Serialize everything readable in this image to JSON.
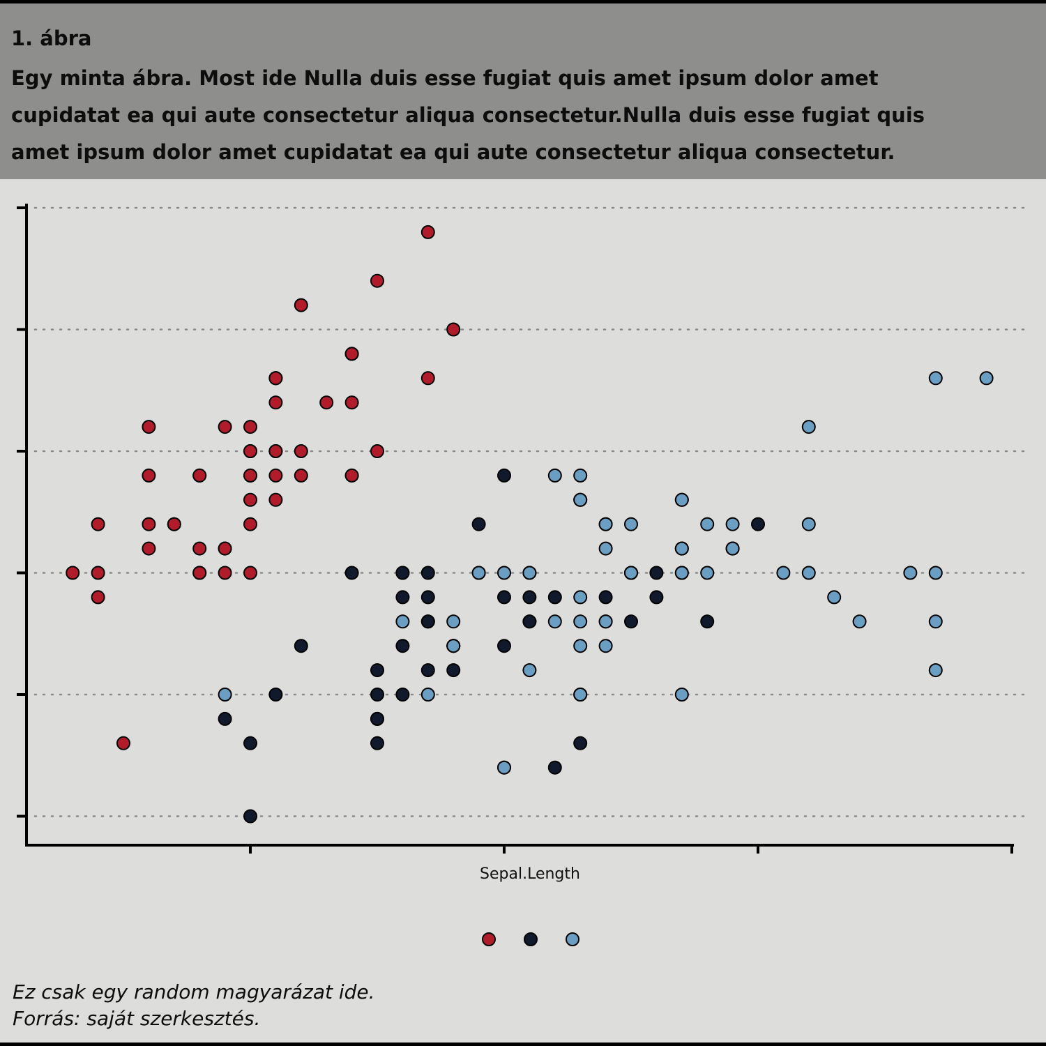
{
  "caption": {
    "number": "1. ábra",
    "text": "Egy minta ábra. Most ide Nulla duis esse fugiat quis amet ipsum dolor amet cupidatat ea qui aute consectetur aliqua consectetur.Nulla duis esse fugiat quis amet ipsum dolor amet cupidatat ea qui aute consectetur aliqua consectetur."
  },
  "footer": {
    "note": "Ez csak egy random magyarázat ide.",
    "source": "Forrás: saját szerkesztés."
  },
  "chart_data": {
    "type": "scatter",
    "title": "",
    "xlabel": "Sepal.Length",
    "ylabel": "",
    "xlim": [
      4.2,
      8.0
    ],
    "ylim": [
      1.9,
      4.5
    ],
    "x_ticks": [
      5,
      6,
      7,
      8
    ],
    "y_ticks": [
      2.0,
      2.5,
      3.0,
      3.5,
      4.0,
      4.5
    ],
    "tick_labels_shown": false,
    "grid": "horizontal dotted",
    "legend_position": "bottom",
    "legend_labels_shown": false,
    "series": [
      {
        "color": "#b01c2a",
        "points": [
          [
            5.1,
            3.5
          ],
          [
            4.9,
            3.0
          ],
          [
            4.7,
            3.2
          ],
          [
            4.6,
            3.1
          ],
          [
            5.0,
            3.6
          ],
          [
            5.4,
            3.9
          ],
          [
            4.6,
            3.4
          ],
          [
            5.0,
            3.4
          ],
          [
            4.4,
            2.9
          ],
          [
            4.9,
            3.1
          ],
          [
            5.4,
            3.7
          ],
          [
            4.8,
            3.4
          ],
          [
            4.8,
            3.0
          ],
          [
            4.3,
            3.0
          ],
          [
            5.8,
            4.0
          ],
          [
            5.7,
            4.4
          ],
          [
            5.4,
            3.9
          ],
          [
            5.1,
            3.5
          ],
          [
            5.7,
            3.8
          ],
          [
            5.1,
            3.8
          ],
          [
            5.4,
            3.4
          ],
          [
            5.1,
            3.7
          ],
          [
            4.6,
            3.6
          ],
          [
            5.1,
            3.3
          ],
          [
            4.8,
            3.4
          ],
          [
            5.0,
            3.0
          ],
          [
            5.0,
            3.4
          ],
          [
            5.2,
            3.5
          ],
          [
            5.2,
            3.4
          ],
          [
            4.7,
            3.2
          ],
          [
            4.8,
            3.1
          ],
          [
            5.4,
            3.4
          ],
          [
            5.2,
            4.1
          ],
          [
            5.5,
            4.2
          ],
          [
            4.9,
            3.1
          ],
          [
            5.0,
            3.2
          ],
          [
            5.5,
            3.5
          ],
          [
            4.9,
            3.6
          ],
          [
            4.4,
            3.0
          ],
          [
            5.1,
            3.4
          ],
          [
            5.0,
            3.5
          ],
          [
            4.5,
            2.3
          ],
          [
            4.4,
            3.2
          ],
          [
            5.0,
            3.5
          ],
          [
            5.1,
            3.8
          ],
          [
            4.8,
            3.0
          ],
          [
            5.1,
            3.8
          ],
          [
            4.6,
            3.2
          ],
          [
            5.3,
            3.7
          ],
          [
            5.0,
            3.3
          ]
        ]
      },
      {
        "color": "#111a2c",
        "points": [
          [
            7.0,
            3.2
          ],
          [
            6.4,
            3.2
          ],
          [
            6.9,
            3.1
          ],
          [
            5.5,
            2.3
          ],
          [
            6.5,
            2.8
          ],
          [
            5.7,
            2.8
          ],
          [
            6.3,
            3.3
          ],
          [
            4.9,
            2.4
          ],
          [
            6.6,
            2.9
          ],
          [
            5.2,
            2.7
          ],
          [
            5.0,
            2.0
          ],
          [
            5.9,
            3.0
          ],
          [
            6.0,
            2.2
          ],
          [
            6.1,
            2.9
          ],
          [
            5.6,
            2.9
          ],
          [
            6.7,
            3.1
          ],
          [
            5.6,
            3.0
          ],
          [
            5.8,
            2.7
          ],
          [
            6.2,
            2.2
          ],
          [
            5.6,
            2.5
          ],
          [
            5.9,
            3.2
          ],
          [
            6.1,
            2.8
          ],
          [
            6.3,
            2.5
          ],
          [
            6.1,
            2.8
          ],
          [
            6.4,
            2.9
          ],
          [
            6.6,
            3.0
          ],
          [
            6.8,
            2.8
          ],
          [
            6.7,
            3.0
          ],
          [
            6.0,
            2.9
          ],
          [
            5.7,
            2.6
          ],
          [
            5.5,
            2.4
          ],
          [
            5.5,
            2.4
          ],
          [
            5.8,
            2.7
          ],
          [
            6.0,
            2.7
          ],
          [
            5.4,
            3.0
          ],
          [
            6.0,
            3.4
          ],
          [
            6.7,
            3.1
          ],
          [
            6.3,
            2.3
          ],
          [
            5.6,
            3.0
          ],
          [
            5.5,
            2.5
          ],
          [
            5.5,
            2.6
          ],
          [
            6.1,
            3.0
          ],
          [
            5.8,
            2.6
          ],
          [
            5.0,
            2.3
          ],
          [
            5.6,
            2.7
          ],
          [
            5.7,
            3.0
          ],
          [
            5.7,
            2.9
          ],
          [
            6.2,
            2.9
          ],
          [
            5.1,
            2.5
          ],
          [
            5.7,
            2.8
          ]
        ]
      },
      {
        "color": "#6b9ec3",
        "points": [
          [
            6.3,
            3.3
          ],
          [
            5.8,
            2.7
          ],
          [
            7.1,
            3.0
          ],
          [
            6.3,
            2.9
          ],
          [
            6.5,
            3.0
          ],
          [
            7.6,
            3.0
          ],
          [
            4.9,
            2.5
          ],
          [
            7.3,
            2.9
          ],
          [
            6.7,
            2.5
          ],
          [
            7.2,
            3.6
          ],
          [
            6.5,
            3.2
          ],
          [
            6.4,
            2.7
          ],
          [
            6.8,
            3.0
          ],
          [
            5.7,
            2.5
          ],
          [
            5.8,
            2.8
          ],
          [
            6.4,
            3.2
          ],
          [
            6.5,
            3.0
          ],
          [
            7.7,
            3.8
          ],
          [
            7.7,
            2.6
          ],
          [
            6.0,
            2.2
          ],
          [
            6.9,
            3.2
          ],
          [
            5.6,
            2.8
          ],
          [
            7.7,
            2.8
          ],
          [
            6.3,
            2.7
          ],
          [
            6.7,
            3.3
          ],
          [
            7.2,
            3.2
          ],
          [
            6.2,
            2.8
          ],
          [
            6.1,
            3.0
          ],
          [
            6.4,
            2.8
          ],
          [
            7.2,
            3.0
          ],
          [
            7.4,
            2.8
          ],
          [
            7.9,
            3.8
          ],
          [
            6.4,
            2.8
          ],
          [
            6.3,
            2.8
          ],
          [
            6.1,
            2.6
          ],
          [
            7.7,
            3.0
          ],
          [
            6.3,
            3.4
          ],
          [
            6.4,
            3.1
          ],
          [
            6.0,
            3.0
          ],
          [
            6.9,
            3.1
          ],
          [
            6.7,
            3.1
          ],
          [
            6.9,
            3.1
          ],
          [
            5.8,
            2.7
          ],
          [
            6.8,
            3.2
          ],
          [
            6.7,
            3.3
          ],
          [
            6.7,
            3.0
          ],
          [
            6.3,
            2.5
          ],
          [
            6.5,
            3.0
          ],
          [
            6.2,
            3.4
          ],
          [
            5.9,
            3.0
          ]
        ]
      }
    ]
  }
}
